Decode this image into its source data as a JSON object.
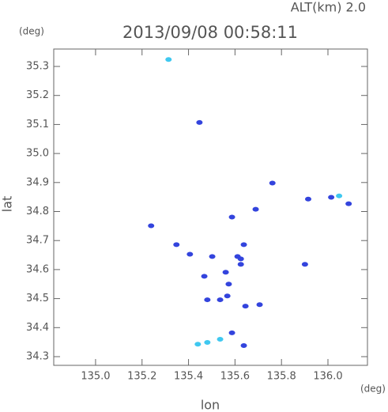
{
  "chart_data": {
    "type": "scatter",
    "title": "2013/09/08 00:58:11",
    "subtitle": "ALT(km) 2.0",
    "x_label": "lon",
    "y_label": "lat",
    "x_unit": "(deg)",
    "y_unit": "(deg)",
    "xlim": [
      134.82,
      136.17
    ],
    "ylim": [
      34.27,
      35.36
    ],
    "xticks": [
      {
        "value": 135.0,
        "label": "135.0"
      },
      135.2,
      135.4,
      135.6,
      135.8,
      {
        "value": 136.0,
        "label": "136.0"
      }
    ],
    "yticks": [
      34.3,
      34.4,
      34.5,
      34.6,
      34.7,
      34.8,
      34.9,
      {
        "value": 35.0,
        "label": "35.0"
      },
      35.1,
      35.2,
      35.3
    ],
    "grid": false,
    "x": [
      135.314,
      135.447,
      135.761,
      135.915,
      136.048,
      136.014,
      136.089,
      135.587,
      135.689,
      135.239,
      135.348,
      135.406,
      135.502,
      135.638,
      135.611,
      135.901,
      135.56,
      135.573,
      135.468,
      135.625,
      135.567,
      135.536,
      135.645,
      135.706,
      135.481,
      135.587,
      135.638,
      135.481,
      135.44,
      135.536,
      135.625
    ],
    "values": [
      35.324,
      35.107,
      34.898,
      34.843,
      34.854,
      34.849,
      34.827,
      34.781,
      34.808,
      34.751,
      34.686,
      34.653,
      34.645,
      34.686,
      34.645,
      34.618,
      34.591,
      34.55,
      34.577,
      34.618,
      34.509,
      34.496,
      34.474,
      34.479,
      34.496,
      34.382,
      34.338,
      34.349,
      34.343,
      34.36,
      34.637
    ],
    "point_colors": [
      "#3fc8f0",
      "#3344dd",
      "#3344dd",
      "#3344dd",
      "#3fc8f0",
      "#3344dd",
      "#3344dd",
      "#3344dd",
      "#3344dd",
      "#3344dd",
      "#3344dd",
      "#3344dd",
      "#3344dd",
      "#3344dd",
      "#3344dd",
      "#3344dd",
      "#3344dd",
      "#3344dd",
      "#3344dd",
      "#3344dd",
      "#3344dd",
      "#3344dd",
      "#3344dd",
      "#3344dd",
      "#3344dd",
      "#3344dd",
      "#3344dd",
      "#3fc8f0",
      "#3fc8f0",
      "#3fc8f0",
      "#3344dd"
    ]
  }
}
